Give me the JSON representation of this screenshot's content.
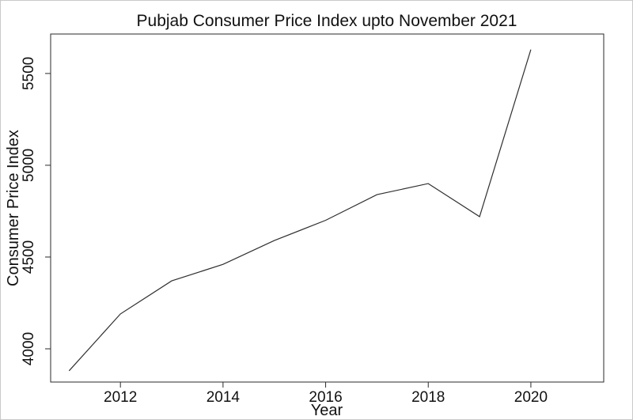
{
  "page": {
    "background_color": "#ffffff",
    "frame_border_color": "#c9c9c9"
  },
  "chart_data": {
    "type": "line",
    "title": "Pubjab Consumer Price Index upto November 2021",
    "xlabel": "Year",
    "ylabel": "Consumer Price Index",
    "x": [
      2011,
      2012,
      2013,
      2014,
      2015,
      2016,
      2017,
      2018,
      2019,
      2020
    ],
    "series": [
      {
        "name": "Consumer Price Index",
        "values": [
          3880,
          4190,
          4370,
          4460,
          4590,
          4700,
          4840,
          4900,
          4720,
          5630
        ]
      }
    ],
    "x_ticks": [
      2012,
      2014,
      2016,
      2018,
      2020
    ],
    "y_ticks": [
      4000,
      4500,
      5000,
      5500
    ],
    "xlim": [
      2010.64,
      2021.42
    ],
    "ylim": [
      3819,
      5715
    ],
    "grid": false,
    "legend": null,
    "line_color": "#2f2f2f",
    "axis_color": "#2a2a2a",
    "text_color": "#111111"
  }
}
